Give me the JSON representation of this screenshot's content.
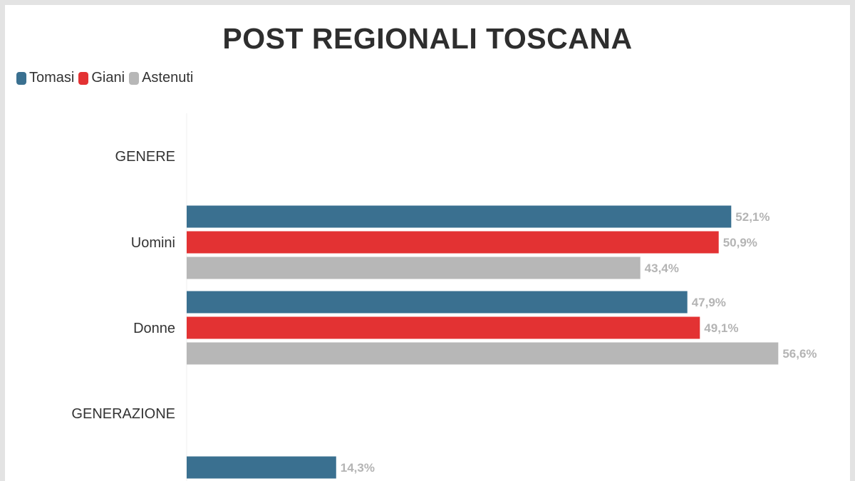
{
  "title": "POST REGIONALI TOSCANA",
  "legend": [
    {
      "name": "Tomasi",
      "color": "#3a7090"
    },
    {
      "name": "Giani",
      "color": "#e33233"
    },
    {
      "name": "Astenuti",
      "color": "#b7b7b7"
    }
  ],
  "chart_data": {
    "type": "bar",
    "orientation": "horizontal",
    "title": "POST REGIONALI TOSCANA",
    "legend_position": "top-left",
    "grid": false,
    "xlim": [
      0,
      60
    ],
    "rows": [
      {
        "label": "GENERE",
        "kind": "header",
        "values": []
      },
      {
        "label": "Uomini",
        "kind": "group",
        "values": [
          52.1,
          50.9,
          43.4
        ],
        "labels": [
          "52,1%",
          "50,9%",
          "43,4%"
        ]
      },
      {
        "label": "Donne",
        "kind": "group",
        "values": [
          47.9,
          49.1,
          56.6
        ],
        "labels": [
          "47,9%",
          "49,1%",
          "56,6%"
        ]
      },
      {
        "label": "GENERAZIONE",
        "kind": "header",
        "values": []
      },
      {
        "label": "",
        "kind": "group",
        "values": [
          14.3
        ],
        "labels": [
          "14,3%"
        ]
      }
    ],
    "series": [
      {
        "name": "Tomasi",
        "color": "#3a7090"
      },
      {
        "name": "Giani",
        "color": "#e33233"
      },
      {
        "name": "Astenuti",
        "color": "#b7b7b7"
      }
    ]
  }
}
